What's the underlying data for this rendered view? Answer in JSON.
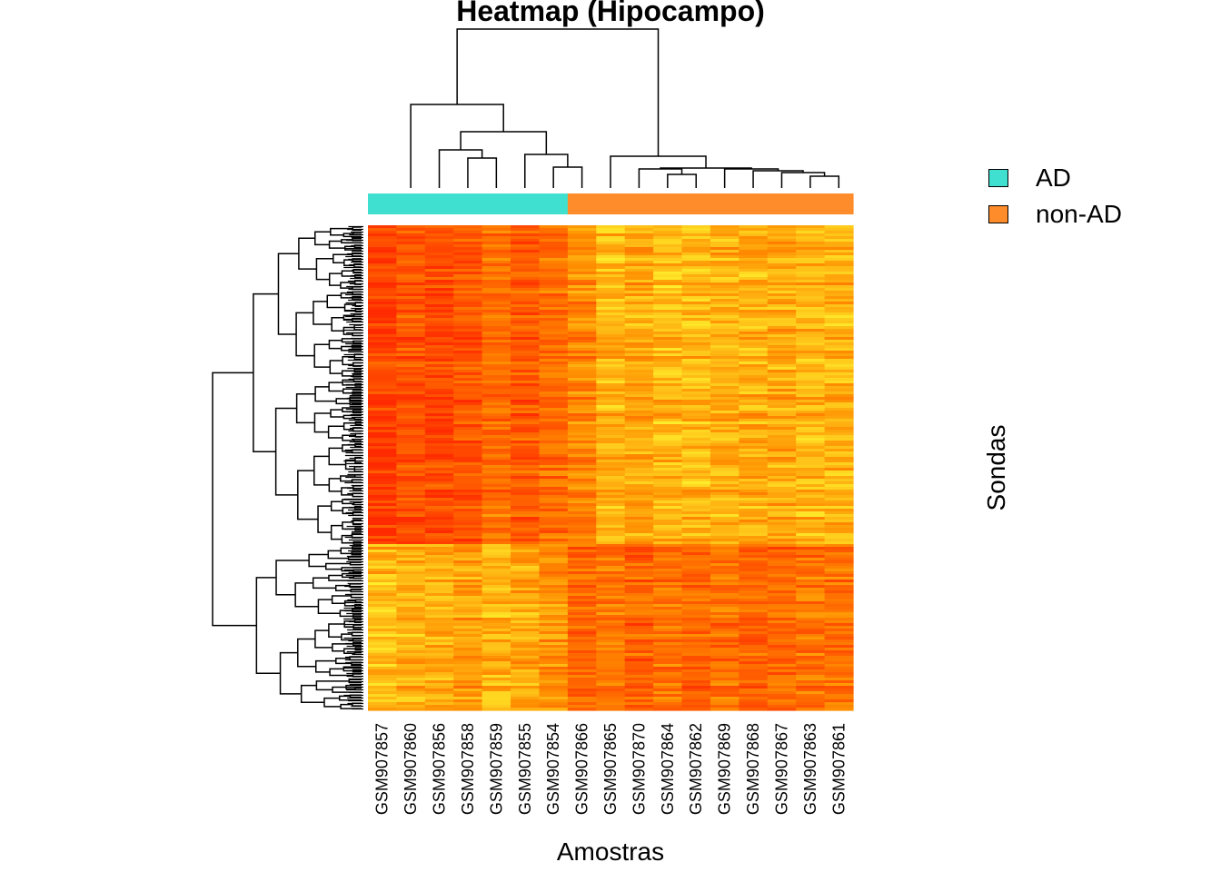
{
  "chart_data": {
    "type": "heatmap",
    "title": "Heatmap (Hipocampo)",
    "xlabel": "Amostras",
    "ylabel": "Sondas",
    "columns": [
      "GSM907857",
      "GSM907860",
      "GSM907856",
      "GSM907858",
      "GSM907859",
      "GSM907855",
      "GSM907854",
      "GSM907866",
      "GSM907865",
      "GSM907870",
      "GSM907864",
      "GSM907862",
      "GSM907869",
      "GSM907868",
      "GSM907867",
      "GSM907863",
      "GSM907861"
    ],
    "groups": [
      "AD",
      "AD",
      "AD",
      "AD",
      "AD",
      "AD",
      "AD",
      "non-AD",
      "non-AD",
      "non-AD",
      "non-AD",
      "non-AD",
      "non-AD",
      "non-AD",
      "non-AD",
      "non-AD",
      "non-AD"
    ],
    "legend": [
      {
        "label": "AD",
        "color": "#40E0D0"
      },
      {
        "label": "non-AD",
        "color": "#FF8C2A"
      }
    ],
    "legend_position": "right",
    "row_clusters": [
      {
        "rows": 0.66,
        "mean": [
          0.1,
          0.22,
          0.14,
          0.2,
          0.34,
          0.24,
          0.33,
          0.46,
          0.68,
          0.62,
          0.7,
          0.68,
          0.65,
          0.64,
          0.62,
          0.68,
          0.66
        ]
      },
      {
        "rows": 0.34,
        "mean": [
          0.7,
          0.66,
          0.63,
          0.56,
          0.68,
          0.6,
          0.52,
          0.3,
          0.38,
          0.28,
          0.36,
          0.3,
          0.34,
          0.28,
          0.32,
          0.36,
          0.34
        ]
      }
    ],
    "color_scale": [
      "#FF2A00",
      "#FF8C00",
      "#FFFF33"
    ],
    "row_dendrogram": true,
    "column_dendrogram": true
  }
}
